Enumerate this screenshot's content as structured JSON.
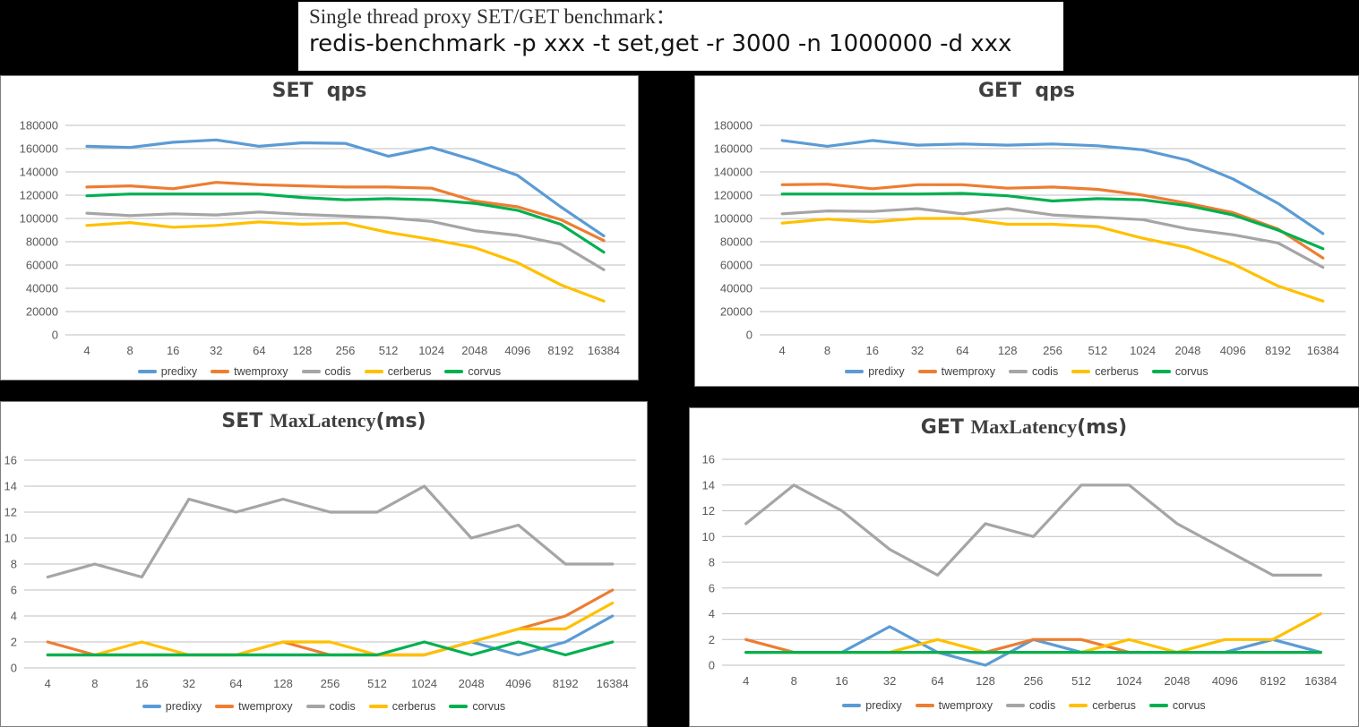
{
  "header": {
    "line1": "Single thread proxy SET/GET benchmark：",
    "line2": "redis-benchmark -p xxx -t set,get -r 3000 -n 1000000 -d xxx"
  },
  "legend": [
    {
      "label": "predixy",
      "color": "#5B9BD5"
    },
    {
      "label": "twemproxy",
      "color": "#ED7D31"
    },
    {
      "label": "codis",
      "color": "#A5A5A5"
    },
    {
      "label": "cerberus",
      "color": "#FFC000"
    },
    {
      "label": "corvus",
      "color": "#00B050"
    }
  ],
  "chart_data": [
    {
      "id": "set-qps",
      "type": "line",
      "title": "SET  qps",
      "title_parts": [
        {
          "text": "SET  qps",
          "style": "bold"
        }
      ],
      "categories": [
        "4",
        "8",
        "16",
        "32",
        "64",
        "128",
        "256",
        "512",
        "1024",
        "2048",
        "4096",
        "8192",
        "16384"
      ],
      "ylim": [
        0,
        180000
      ],
      "ytick_step": 20000,
      "grid": true,
      "legend_position": "bottom",
      "series": [
        {
          "name": "predixy",
          "color": "#5B9BD5",
          "values": [
            162000,
            161000,
            165500,
            167500,
            162000,
            165000,
            164500,
            153500,
            161000,
            150000,
            137000,
            110000,
            85000
          ]
        },
        {
          "name": "twemproxy",
          "color": "#ED7D31",
          "values": [
            127000,
            128000,
            125500,
            131000,
            129000,
            128000,
            127000,
            127000,
            126000,
            115000,
            110000,
            99000,
            81000
          ]
        },
        {
          "name": "codis",
          "color": "#A5A5A5",
          "values": [
            104500,
            102500,
            104000,
            103000,
            105500,
            103500,
            102000,
            100500,
            97500,
            89500,
            85500,
            78000,
            56000
          ]
        },
        {
          "name": "cerberus",
          "color": "#FFC000",
          "values": [
            94000,
            96500,
            92500,
            94000,
            97000,
            95000,
            96000,
            88000,
            82000,
            75000,
            62000,
            43000,
            29000
          ]
        },
        {
          "name": "corvus",
          "color": "#00B050",
          "values": [
            119500,
            121000,
            121000,
            121000,
            121000,
            118000,
            116000,
            117000,
            116000,
            113000,
            107000,
            95000,
            71000
          ]
        }
      ]
    },
    {
      "id": "get-qps",
      "type": "line",
      "title": "GET  qps",
      "title_parts": [
        {
          "text": "GET  qps",
          "style": "bold"
        }
      ],
      "categories": [
        "4",
        "8",
        "16",
        "32",
        "64",
        "128",
        "256",
        "512",
        "1024",
        "2048",
        "4096",
        "8192",
        "16384"
      ],
      "ylim": [
        0,
        180000
      ],
      "ytick_step": 20000,
      "grid": true,
      "legend_position": "bottom",
      "series": [
        {
          "name": "predixy",
          "color": "#5B9BD5",
          "values": [
            167000,
            162000,
            167000,
            163000,
            164000,
            163000,
            164000,
            162500,
            159000,
            150000,
            134000,
            113000,
            87000
          ]
        },
        {
          "name": "twemproxy",
          "color": "#ED7D31",
          "values": [
            129000,
            129500,
            125500,
            129000,
            129000,
            126000,
            127000,
            125000,
            120000,
            113000,
            105000,
            91000,
            66000
          ]
        },
        {
          "name": "codis",
          "color": "#A5A5A5",
          "values": [
            104000,
            106500,
            106000,
            108500,
            104000,
            108500,
            103000,
            101000,
            99000,
            91000,
            86000,
            79000,
            58000
          ]
        },
        {
          "name": "cerberus",
          "color": "#FFC000",
          "values": [
            96000,
            99500,
            97000,
            100000,
            100000,
            95000,
            95000,
            93000,
            83000,
            75000,
            61000,
            42000,
            29000
          ]
        },
        {
          "name": "corvus",
          "color": "#00B050",
          "values": [
            121000,
            121000,
            121000,
            121000,
            121500,
            119500,
            115000,
            117000,
            116000,
            111000,
            103000,
            90000,
            74000
          ]
        }
      ]
    },
    {
      "id": "set-maxlatency",
      "type": "line",
      "title": "SET MaxLatency(ms)",
      "title_parts": [
        {
          "text": "SET ",
          "style": "bold"
        },
        {
          "text": "MaxLatency",
          "style": "serif"
        },
        {
          "text": "(ms)",
          "style": "bold"
        }
      ],
      "categories": [
        "4",
        "8",
        "16",
        "32",
        "64",
        "128",
        "256",
        "512",
        "1024",
        "2048",
        "4096",
        "8192",
        "16384"
      ],
      "ylim": [
        0,
        16
      ],
      "ytick_step": 2,
      "grid": true,
      "legend_position": "bottom",
      "series": [
        {
          "name": "predixy",
          "color": "#5B9BD5",
          "values": [
            1,
            1,
            1,
            1,
            1,
            1,
            1,
            1,
            1,
            2,
            1,
            2,
            4
          ]
        },
        {
          "name": "twemproxy",
          "color": "#ED7D31",
          "values": [
            2,
            1,
            1,
            1,
            1,
            2,
            1,
            1,
            1,
            2,
            3,
            4,
            6
          ]
        },
        {
          "name": "codis",
          "color": "#A5A5A5",
          "values": [
            7,
            8,
            7,
            13,
            12,
            13,
            12,
            12,
            14,
            10,
            11,
            8,
            8
          ]
        },
        {
          "name": "cerberus",
          "color": "#FFC000",
          "values": [
            1,
            1,
            2,
            1,
            1,
            2,
            2,
            1,
            1,
            2,
            3,
            3,
            5
          ]
        },
        {
          "name": "corvus",
          "color": "#00B050",
          "values": [
            1,
            1,
            1,
            1,
            1,
            1,
            1,
            1,
            2,
            1,
            2,
            1,
            2
          ]
        }
      ]
    },
    {
      "id": "get-maxlatency",
      "type": "line",
      "title": "GET MaxLatency(ms)",
      "title_parts": [
        {
          "text": "GET ",
          "style": "bold"
        },
        {
          "text": "MaxLatency",
          "style": "serif"
        },
        {
          "text": "(ms)",
          "style": "bold"
        }
      ],
      "categories": [
        "4",
        "8",
        "16",
        "32",
        "64",
        "128",
        "256",
        "512",
        "1024",
        "2048",
        "4096",
        "8192",
        "16384"
      ],
      "ylim": [
        0,
        16
      ],
      "ytick_step": 2,
      "grid": true,
      "legend_position": "bottom",
      "series": [
        {
          "name": "predixy",
          "color": "#5B9BD5",
          "values": [
            1,
            1,
            1,
            3,
            1,
            0,
            2,
            1,
            1,
            1,
            1,
            2,
            1
          ]
        },
        {
          "name": "twemproxy",
          "color": "#ED7D31",
          "values": [
            2,
            1,
            1,
            1,
            1,
            1,
            2,
            2,
            1,
            1,
            1,
            1,
            1
          ]
        },
        {
          "name": "codis",
          "color": "#A5A5A5",
          "values": [
            11,
            14,
            12,
            9,
            7,
            11,
            10,
            14,
            14,
            11,
            9,
            7,
            7
          ]
        },
        {
          "name": "cerberus",
          "color": "#FFC000",
          "values": [
            1,
            1,
            1,
            1,
            2,
            1,
            1,
            1,
            2,
            1,
            2,
            2,
            4
          ]
        },
        {
          "name": "corvus",
          "color": "#00B050",
          "values": [
            1,
            1,
            1,
            1,
            1,
            1,
            1,
            1,
            1,
            1,
            1,
            1,
            1
          ]
        }
      ]
    }
  ],
  "style_colors": {
    "gridline": "#BFBFBF",
    "axis_text": "#595959",
    "panel_border": "#7F7F7F"
  }
}
